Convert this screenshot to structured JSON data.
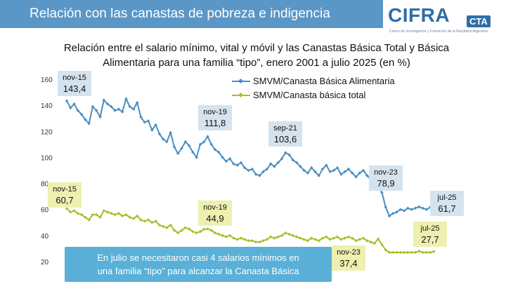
{
  "header": {
    "title": "Relación con las canastas de pobreza e indigencia",
    "logo_text": "CIFRA",
    "logo_badge": "CTA",
    "logo_subtitle": "Centro de Investigación y Formación de la República Argentina"
  },
  "note": {
    "line1": "En julio se necesitaron casi 4 salarios mínimos en",
    "line2": "una familia “tipo” para alcanzar la Canasta Básica"
  },
  "colors": {
    "banner": "#5a96c6",
    "series_alimentaria": "#4b8fc1",
    "series_total": "#a9bf2a",
    "label_blue_bg": "#d5e3ee",
    "label_green_bg": "#eef0b0",
    "note_bg": "#5ab0d6"
  },
  "chart_data": {
    "type": "line",
    "title_line1": "Relación entre el salario mínimo, vital y móvil y las Canastas Básica Total y Básica",
    "title_line2": "Alimentaria para una familia “tipo”, enero 2001 a julio 2025 (en %)",
    "ylim": [
      20,
      160
    ],
    "yticks": [
      "160",
      "140",
      "120",
      "100",
      "80",
      "60",
      "40",
      "20"
    ],
    "xlabel": "",
    "ylabel": "",
    "legend_position": "top-right",
    "series": [
      {
        "name": "SMVM/Canasta Básica Alimentaria",
        "color": "#4b8fc1",
        "values": [
          143.4,
          138,
          141,
          136,
          133,
          129,
          126,
          139,
          136,
          131,
          144,
          141,
          139,
          136,
          137,
          135,
          145,
          139,
          137,
          142,
          131,
          127,
          128,
          121,
          125,
          118,
          114,
          112,
          119,
          108,
          103,
          107,
          112,
          109,
          104,
          100,
          110,
          111.8,
          116,
          110,
          106,
          104,
          100,
          97,
          99,
          95,
          94,
          96,
          92,
          90,
          91,
          87,
          86,
          89,
          91,
          95,
          93,
          96,
          99,
          103.6,
          102,
          98,
          96,
          93,
          90,
          88,
          92,
          89,
          86,
          91,
          94,
          89,
          90,
          92,
          87,
          89,
          91,
          88,
          85,
          88,
          90,
          86,
          83,
          81,
          78.9,
          73,
          62,
          55,
          57,
          58,
          60,
          59,
          61,
          60,
          61,
          62,
          61,
          60,
          61.7
        ]
      },
      {
        "name": "SMVM/Canasta básica total",
        "color": "#a9bf2a",
        "values": [
          60.7,
          58,
          59,
          57,
          56,
          54,
          52,
          56,
          56,
          54,
          59,
          58,
          57,
          56,
          57,
          55,
          56,
          54,
          53,
          55,
          52,
          51,
          52,
          50,
          51,
          48,
          47,
          46,
          48,
          44,
          42,
          44,
          46,
          45,
          43,
          42,
          43,
          44.9,
          45,
          44,
          42,
          41,
          40,
          39,
          40,
          38,
          37,
          38,
          37,
          36,
          36,
          35,
          35,
          36,
          37,
          39,
          38,
          39,
          40,
          42,
          41,
          40,
          39,
          38,
          37,
          36,
          38,
          37,
          36,
          38,
          39,
          37,
          38,
          39,
          37,
          38,
          39,
          38,
          36,
          37,
          38,
          36,
          35,
          34,
          37.4,
          33,
          29,
          27,
          27,
          27,
          27,
          27,
          27,
          27,
          27,
          28,
          27,
          27,
          27,
          27.7
        ]
      }
    ],
    "annotations": [
      {
        "series": 0,
        "index": 0,
        "date": "nov-15",
        "value": "143,4"
      },
      {
        "series": 0,
        "index": 37,
        "date": "nov-19",
        "value": "111,8"
      },
      {
        "series": 0,
        "index": 59,
        "date": "sep-21",
        "value": "103,6"
      },
      {
        "series": 0,
        "index": 84,
        "date": "nov-23",
        "value": "78,9"
      },
      {
        "series": 0,
        "index": 99,
        "date": "jul-25",
        "value": "61,7"
      },
      {
        "series": 1,
        "index": 0,
        "date": "nov-15",
        "value": "60,7"
      },
      {
        "series": 1,
        "index": 37,
        "date": "nov-19",
        "value": "44,9"
      },
      {
        "series": 1,
        "index": 84,
        "date": "nov-23",
        "value": "37,4"
      },
      {
        "series": 1,
        "index": 99,
        "date": "jul-25",
        "value": "27,7"
      }
    ]
  }
}
